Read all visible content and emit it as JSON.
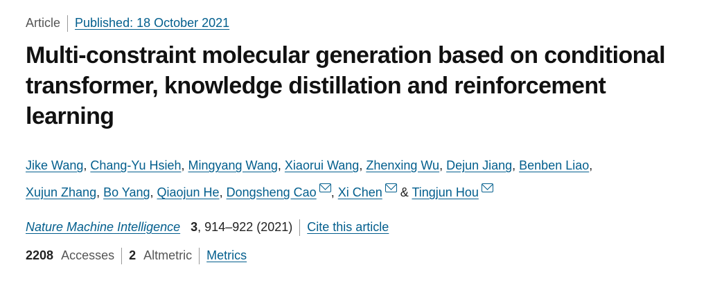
{
  "header": {
    "type": "Article",
    "published": "Published: 18 October 2021"
  },
  "title": "Multi-constraint molecular generation based on conditional transformer, knowledge distillation and reinforcement learning",
  "authors": [
    {
      "name": "Jike Wang",
      "mail": false
    },
    {
      "name": "Chang-Yu Hsieh",
      "mail": false
    },
    {
      "name": "Mingyang Wang",
      "mail": false
    },
    {
      "name": "Xiaorui Wang",
      "mail": false
    },
    {
      "name": "Zhenxing Wu",
      "mail": false
    },
    {
      "name": "Dejun Jiang",
      "mail": false
    },
    {
      "name": "Benben Liao",
      "mail": false
    },
    {
      "name": "Xujun Zhang",
      "mail": false
    },
    {
      "name": "Bo Yang",
      "mail": false
    },
    {
      "name": "Qiaojun He",
      "mail": false
    },
    {
      "name": "Dongsheng Cao",
      "mail": true
    },
    {
      "name": "Xi Chen",
      "mail": true
    },
    {
      "name": "Tingjun Hou",
      "mail": true
    }
  ],
  "citation": {
    "journal": "Nature Machine Intelligence",
    "volume": "3",
    "pages": ", 914–922 (2021)",
    "cite": "Cite this article"
  },
  "metrics": {
    "accesses": "2208",
    "accesses_label": "Accesses",
    "altmetric": "2",
    "altmetric_label": "Altmetric",
    "metrics_link": "Metrics"
  },
  "colors": {
    "link": "#025e8d"
  }
}
